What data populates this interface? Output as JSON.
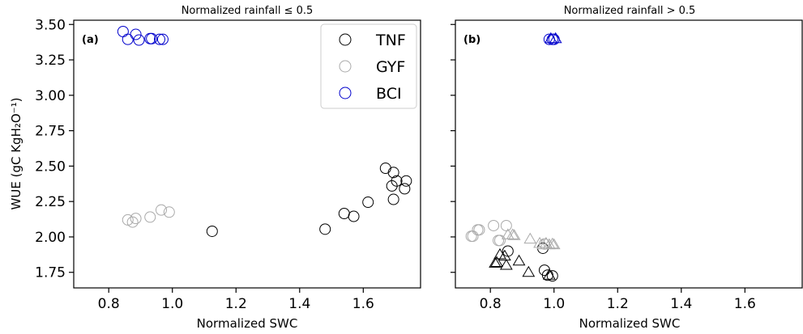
{
  "colors": {
    "TNF": "#000000",
    "GYF": "#aaaaaa",
    "BCI": "#0000cc"
  },
  "ylabel": "WUE (gC KgH₂O⁻¹)",
  "chart_data": [
    {
      "type": "scatter",
      "panel_label": "(a)",
      "title": "Normalized rainfall  ≤ 0.5",
      "xlabel": "Normalized SWC",
      "ylabel": "WUE (gC KgH₂O⁻¹)",
      "xlim": [
        0.69,
        1.78
      ],
      "ylim": [
        1.64,
        3.53
      ],
      "xticks": [
        "0.8",
        "1.0",
        "1.2",
        "1.4",
        "1.6"
      ],
      "yticks": [
        "1.75",
        "2.00",
        "2.25",
        "2.50",
        "2.75",
        "3.00",
        "3.25",
        "3.50"
      ],
      "legend": {
        "position": "top-right",
        "entries": [
          "TNF",
          "GYF",
          "BCI"
        ]
      },
      "series": [
        {
          "name": "TNF",
          "marker": "circle",
          "points": [
            [
              1.125,
              2.04
            ],
            [
              1.48,
              2.055
            ],
            [
              1.54,
              2.165
            ],
            [
              1.57,
              2.145
            ],
            [
              1.615,
              2.245
            ],
            [
              1.67,
              2.485
            ],
            [
              1.695,
              2.455
            ],
            [
              1.705,
              2.395
            ],
            [
              1.69,
              2.36
            ],
            [
              1.735,
              2.395
            ],
            [
              1.73,
              2.34
            ],
            [
              1.695,
              2.265
            ]
          ]
        },
        {
          "name": "GYF",
          "marker": "circle",
          "points": [
            [
              0.86,
              2.12
            ],
            [
              0.875,
              2.105
            ],
            [
              0.885,
              2.13
            ],
            [
              0.93,
              2.14
            ],
            [
              0.965,
              2.19
            ],
            [
              0.99,
              2.175
            ]
          ]
        },
        {
          "name": "BCI",
          "marker": "circle",
          "points": [
            [
              0.845,
              3.45
            ],
            [
              0.86,
              3.395
            ],
            [
              0.885,
              3.43
            ],
            [
              0.895,
              3.39
            ],
            [
              0.93,
              3.4
            ],
            [
              0.935,
              3.4
            ],
            [
              0.96,
              3.395
            ],
            [
              0.97,
              3.395
            ]
          ]
        }
      ]
    },
    {
      "type": "scatter",
      "panel_label": "(b)",
      "title": "Normalized rainfall  > 0.5",
      "xlabel": "Normalized SWC",
      "xlim": [
        0.69,
        1.78
      ],
      "ylim": [
        1.64,
        3.53
      ],
      "xticks": [
        "0.8",
        "1.0",
        "1.2",
        "1.4",
        "1.6"
      ],
      "series": [
        {
          "name": "TNF",
          "marker": "circle",
          "points": [
            [
              0.855,
              1.9
            ],
            [
              0.965,
              1.92
            ],
            [
              0.97,
              1.765
            ],
            [
              0.98,
              1.73
            ],
            [
              0.995,
              1.725
            ]
          ]
        },
        {
          "name": "TNF",
          "marker": "triangle",
          "points": [
            [
              0.815,
              1.815
            ],
            [
              0.82,
              1.82
            ],
            [
              0.83,
              1.875
            ],
            [
              0.845,
              1.865
            ],
            [
              0.85,
              1.8
            ],
            [
              0.89,
              1.83
            ],
            [
              0.92,
              1.75
            ],
            [
              0.985,
              1.73
            ]
          ]
        },
        {
          "name": "GYF",
          "marker": "circle",
          "points": [
            [
              0.74,
              2.005
            ],
            [
              0.745,
              2.005
            ],
            [
              0.76,
              2.05
            ],
            [
              0.765,
              2.05
            ],
            [
              0.81,
              2.08
            ],
            [
              0.825,
              1.975
            ],
            [
              0.83,
              1.975
            ],
            [
              0.85,
              2.08
            ],
            [
              0.97,
              1.95
            ]
          ]
        },
        {
          "name": "GYF",
          "marker": "triangle",
          "points": [
            [
              0.855,
              2.015
            ],
            [
              0.87,
              2.015
            ],
            [
              0.875,
              2.01
            ],
            [
              0.925,
              1.985
            ],
            [
              0.955,
              1.955
            ],
            [
              0.965,
              1.945
            ],
            [
              0.975,
              1.955
            ],
            [
              0.985,
              1.945
            ],
            [
              0.995,
              1.95
            ],
            [
              1.0,
              1.945
            ]
          ]
        },
        {
          "name": "BCI",
          "marker": "circle",
          "points": [
            [
              0.985,
              3.395
            ],
            [
              0.995,
              3.395
            ],
            [
              1.0,
              3.395
            ]
          ]
        },
        {
          "name": "BCI",
          "marker": "triangle",
          "points": [
            [
              0.99,
              3.4
            ],
            [
              1.005,
              3.4
            ]
          ]
        }
      ]
    }
  ]
}
